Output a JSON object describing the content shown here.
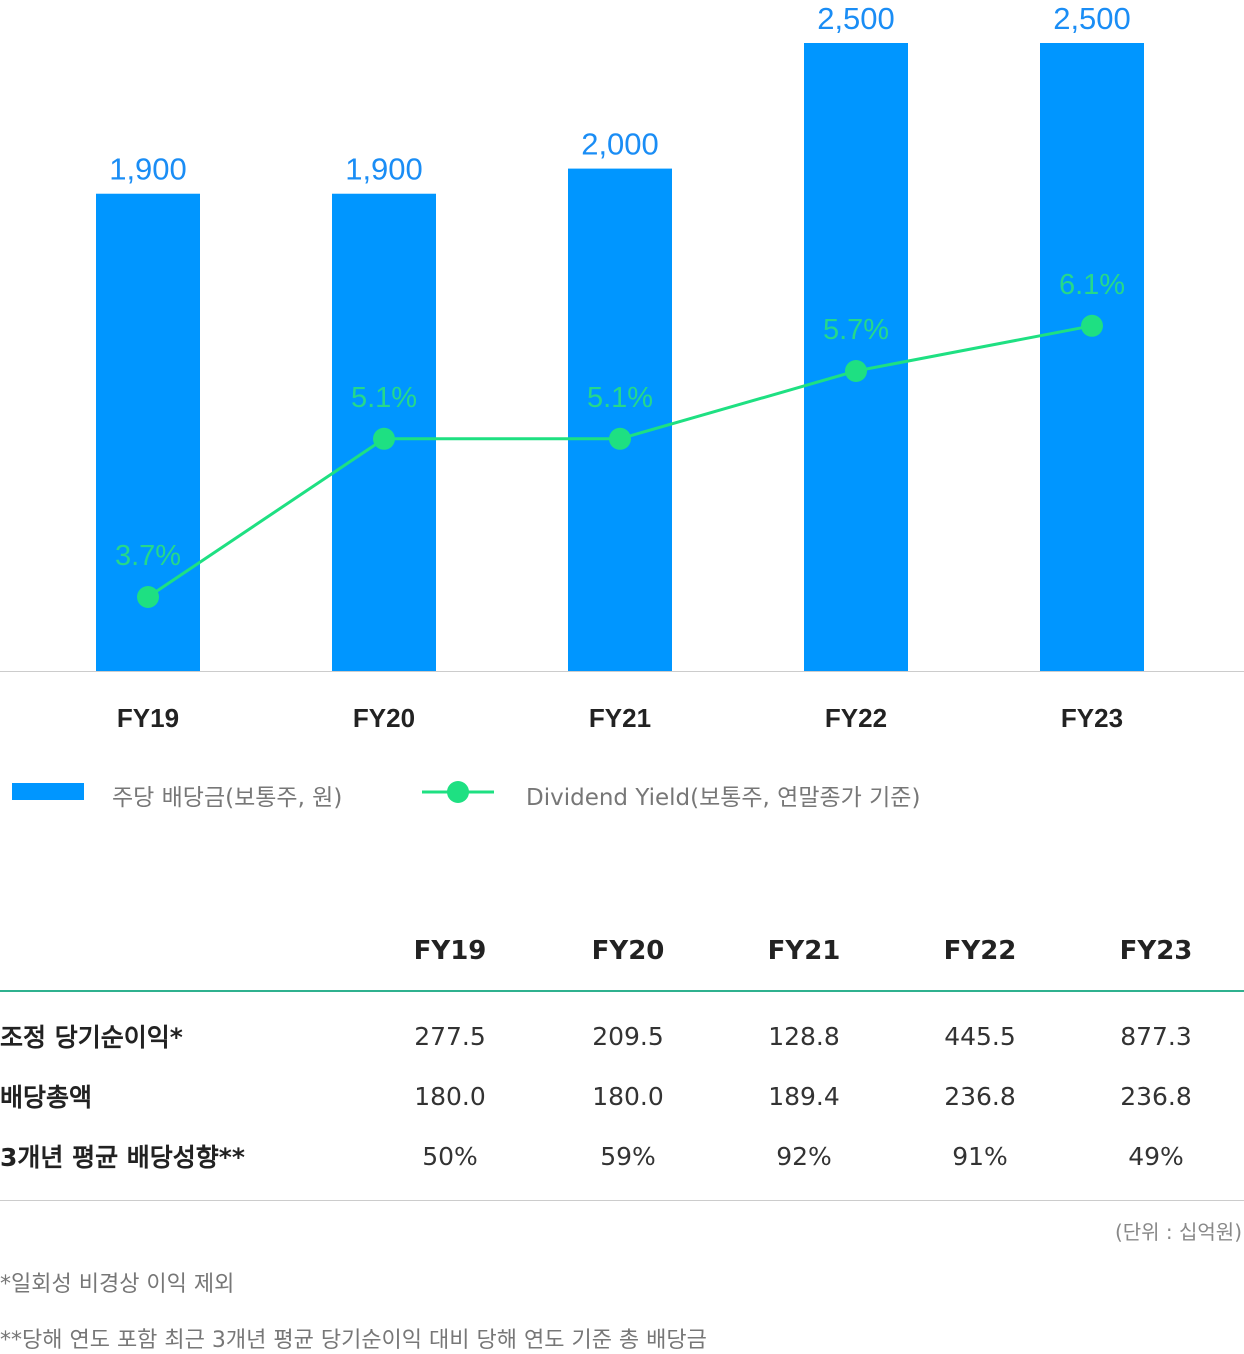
{
  "chart_data": {
    "type": "bar",
    "categories": [
      "FY19",
      "FY20",
      "FY21",
      "FY22",
      "FY23"
    ],
    "series": [
      {
        "name": "주당 배당금(보통주, 원)",
        "type": "bar",
        "values": [
          1900,
          1900,
          2000,
          2500,
          2500
        ],
        "labels": [
          "1,900",
          "1,900",
          "2,000",
          "2,500",
          "2,500"
        ],
        "color": "#0096ff"
      },
      {
        "name": "Dividend Yield(보통주, 연말종가 기준)",
        "type": "line",
        "values": [
          3.7,
          5.1,
          5.1,
          5.7,
          6.1
        ],
        "labels": [
          "3.7%",
          "5.1%",
          "5.1%",
          "5.7%",
          "6.1%"
        ],
        "color": "#1ee082"
      }
    ],
    "legend_position": "bottom-left",
    "grid": false
  },
  "colors": {
    "bar": "#0096ff",
    "line": "#1ee082",
    "table_rule": "#2fb18f"
  },
  "table": {
    "headers": [
      "",
      "FY19",
      "FY20",
      "FY21",
      "FY22",
      "FY23"
    ],
    "rows": [
      {
        "label": "조정 당기순이익*",
        "values": [
          "277.5",
          "209.5",
          "128.8",
          "445.5",
          "877.3"
        ]
      },
      {
        "label": "배당총액",
        "values": [
          "180.0",
          "180.0",
          "189.4",
          "236.8",
          "236.8"
        ]
      },
      {
        "label": "3개년 평균 배당성향**",
        "values": [
          "50%",
          "59%",
          "92%",
          "91%",
          "49%"
        ]
      }
    ]
  },
  "unit_note": "(단위 : 십억원)",
  "footnotes": [
    "*일회성 비경상 이익 제외",
    "**당해 연도 포함 최근 3개년 평균 당기순이익 대비 당해 연도 기준 총 배당금"
  ]
}
